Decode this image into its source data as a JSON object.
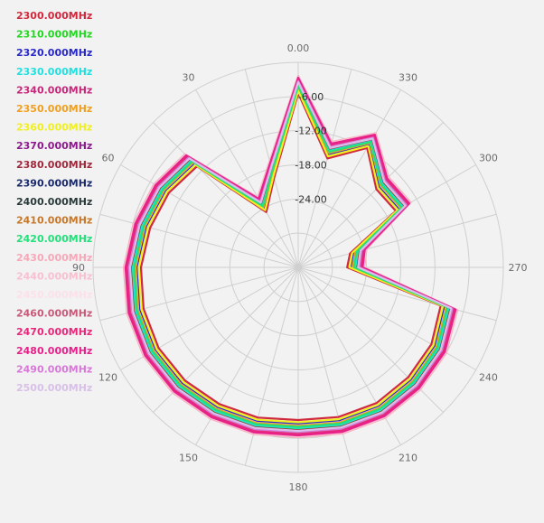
{
  "chart_data": {
    "type": "polar-line",
    "title": "",
    "angular_ticks": [
      "0.00",
      "330",
      "300",
      "270",
      "240",
      "210",
      "180",
      "150",
      "120",
      "90",
      "60",
      "30"
    ],
    "angular_tick_values": [
      0,
      330,
      300,
      270,
      240,
      210,
      180,
      150,
      120,
      90,
      60,
      30
    ],
    "radial_ticks": [
      "-6.00",
      "-12.00",
      "-18.00",
      "-24.00"
    ],
    "radial_tick_values": [
      -6,
      -12,
      -18,
      -24
    ],
    "radial_range": [
      -36,
      0
    ],
    "ring_count": 6,
    "spoke_count": 24,
    "grid": true,
    "legend_position": "left",
    "angles": [
      0,
      15,
      30,
      45,
      60,
      75,
      90,
      105,
      120,
      135,
      150,
      165,
      180,
      195,
      210,
      225,
      240,
      255,
      270,
      285,
      300,
      315,
      330,
      345
    ],
    "base_pattern": [
      -2.8,
      -17.1,
      -22.2,
      -8.3,
      -7.2,
      -6.5,
      -5.8,
      -5.3,
      -5.1,
      -5.3,
      -5.7,
      -6.1,
      -6.6,
      -6.2,
      -5.9,
      -6.1,
      -6.4,
      -7.5,
      -24.8,
      -24.0,
      -13.6,
      -14.0,
      -9.2,
      -13.6
    ],
    "series": [
      {
        "name": "2300.000MHz",
        "color": "#d0283c",
        "offset": -2.6
      },
      {
        "name": "2310.000MHz",
        "color": "#22d822",
        "offset": -1.0
      },
      {
        "name": "2320.000MHz",
        "color": "#2828c8",
        "offset": -2.0
      },
      {
        "name": "2330.000MHz",
        "color": "#22e0e0",
        "offset": -1.2
      },
      {
        "name": "2340.000MHz",
        "color": "#c8287a",
        "offset": -0.4
      },
      {
        "name": "2350.000MHz",
        "color": "#f0a020",
        "offset": -1.6
      },
      {
        "name": "2360.000MHz",
        "color": "#f0f020",
        "offset": -2.2
      },
      {
        "name": "2370.000MHz",
        "color": "#8c1a8c",
        "offset": -0.2
      },
      {
        "name": "2380.000MHz",
        "color": "#a0283c",
        "offset": -0.8
      },
      {
        "name": "2390.000MHz",
        "color": "#1a2a6c",
        "offset": 0.0
      },
      {
        "name": "2400.000MHz",
        "color": "#2a3a3a",
        "offset": 0.2
      },
      {
        "name": "2410.000MHz",
        "color": "#c87828",
        "offset": -0.6
      },
      {
        "name": "2420.000MHz",
        "color": "#22e07a",
        "offset": -1.4
      },
      {
        "name": "2430.000MHz",
        "color": "#f7a8b8",
        "offset": 0.4
      },
      {
        "name": "2440.000MHz",
        "color": "#f8c0d0",
        "offset": 0.3
      },
      {
        "name": "2450.000MHz",
        "color": "#fce0ea",
        "offset": 0.1
      },
      {
        "name": "2460.000MHz",
        "color": "#c85a7a",
        "offset": -0.3
      },
      {
        "name": "2470.000MHz",
        "color": "#e8287a",
        "offset": -0.1
      },
      {
        "name": "2480.000MHz",
        "color": "#e8208a",
        "offset": 0.1
      },
      {
        "name": "2490.000MHz",
        "color": "#d878d8",
        "offset": -0.5
      },
      {
        "name": "2500.000MHz",
        "color": "#d8c0e8",
        "offset": -0.7
      }
    ]
  }
}
